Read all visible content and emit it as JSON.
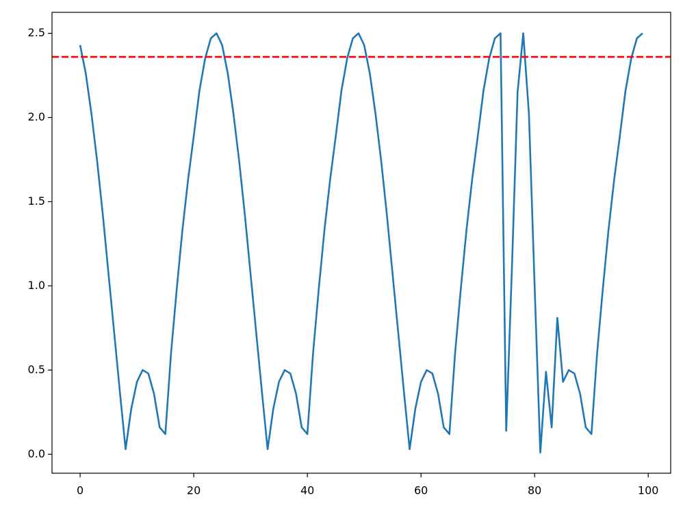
{
  "chart_data": {
    "type": "line",
    "x": [
      0,
      1,
      2,
      3,
      4,
      5,
      6,
      7,
      8,
      9,
      10,
      11,
      12,
      13,
      14,
      15,
      16,
      17,
      18,
      19,
      20,
      21,
      22,
      23,
      24,
      25,
      26,
      27,
      28,
      29,
      30,
      31,
      32,
      33,
      34,
      35,
      36,
      37,
      38,
      39,
      40,
      41,
      42,
      43,
      44,
      45,
      46,
      47,
      48,
      49,
      50,
      51,
      52,
      53,
      54,
      55,
      56,
      57,
      58,
      59,
      60,
      61,
      62,
      63,
      64,
      65,
      66,
      67,
      68,
      69,
      70,
      71,
      72,
      73,
      74,
      75,
      76,
      77,
      78,
      79,
      80,
      81,
      82,
      83,
      84,
      85,
      86,
      87,
      88,
      89,
      90,
      91,
      92,
      93,
      94,
      95,
      96,
      97,
      98,
      99
    ],
    "series": [
      {
        "color": "#1f77b4",
        "values": [
          2.43,
          2.26,
          2.02,
          1.74,
          1.42,
          1.07,
          0.72,
          0.37,
          0.03,
          0.27,
          0.43,
          0.5,
          0.48,
          0.36,
          0.16,
          0.12,
          0.6,
          0.98,
          1.33,
          1.63,
          1.89,
          2.16,
          2.35,
          2.47,
          2.5,
          2.43,
          2.26,
          2.02,
          1.74,
          1.42,
          1.07,
          0.72,
          0.37,
          0.03,
          0.27,
          0.43,
          0.5,
          0.48,
          0.36,
          0.16,
          0.12,
          0.6,
          0.98,
          1.33,
          1.63,
          1.89,
          2.16,
          2.35,
          2.47,
          2.5,
          2.43,
          2.26,
          2.02,
          1.74,
          1.42,
          1.07,
          0.72,
          0.37,
          0.03,
          0.27,
          0.43,
          0.5,
          0.48,
          0.36,
          0.16,
          0.12,
          0.6,
          0.98,
          1.33,
          1.63,
          1.89,
          2.16,
          2.35,
          2.47,
          2.5,
          0.14,
          1.1,
          2.15,
          2.5,
          2.02,
          1.0,
          0.01,
          0.49,
          0.16,
          0.81,
          0.43,
          0.5,
          0.48,
          0.36,
          0.16,
          0.12,
          0.6,
          0.98,
          1.33,
          1.63,
          1.89,
          2.16,
          2.35,
          2.47,
          2.5
        ]
      }
    ],
    "hline": {
      "value": 2.36,
      "color": "#ff0000",
      "style": "dashed"
    },
    "xlim": [
      -4.95,
      103.95
    ],
    "ylim": [
      -0.1125,
      2.6245
    ],
    "xticks": [
      0,
      20,
      40,
      60,
      80,
      100
    ],
    "yticks": [
      {
        "value": 0,
        "label": "0.0"
      },
      0.5,
      {
        "value": 1,
        "label": "1.0"
      },
      1.5,
      {
        "value": 2,
        "label": "2.0"
      },
      2.5
    ]
  }
}
